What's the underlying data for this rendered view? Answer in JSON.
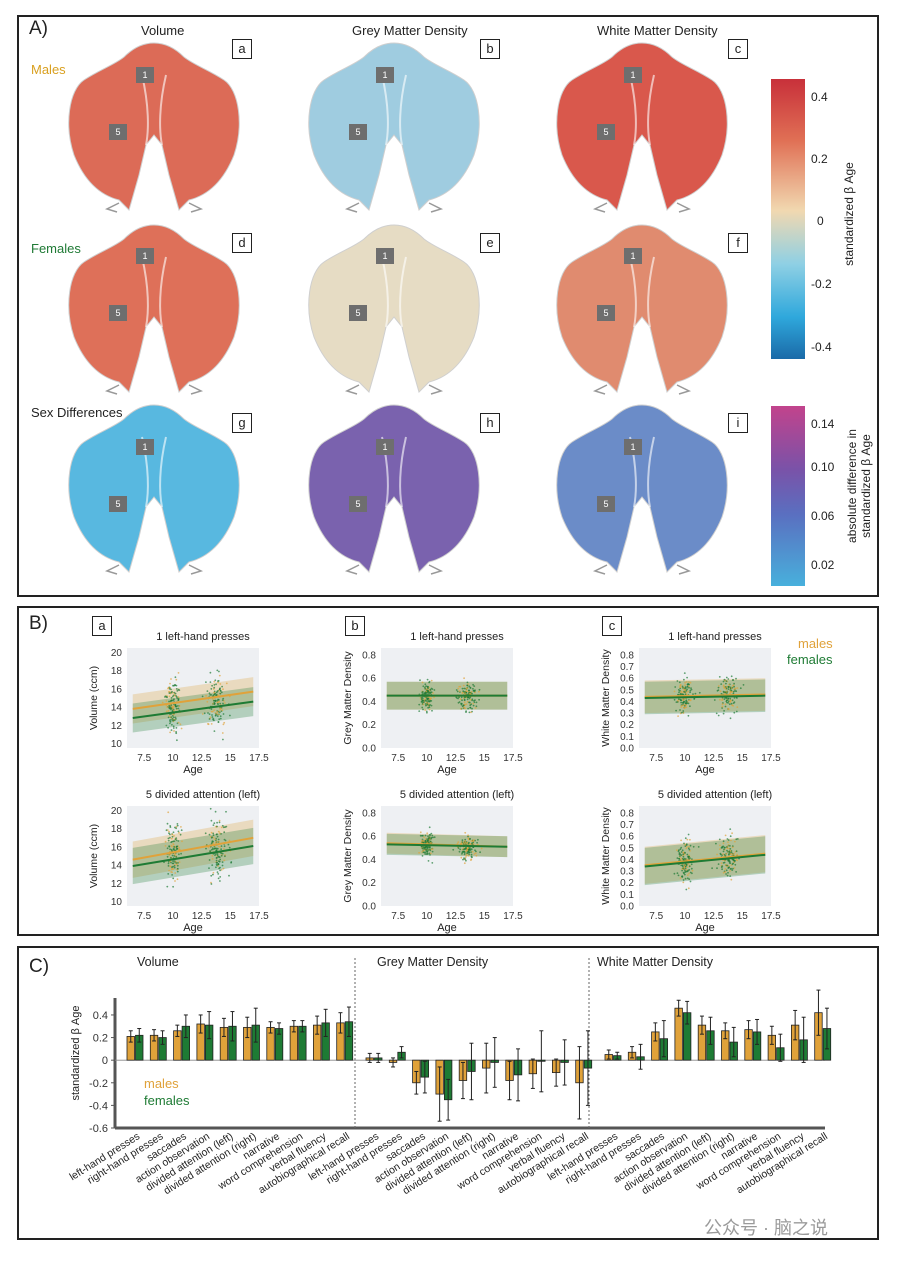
{
  "panelA": {
    "label": "A)",
    "columns": [
      "Volume",
      "Grey Matter Density",
      "White Matter Density"
    ],
    "rows": [
      "Males",
      "Females",
      "Sex Differences"
    ],
    "row_colors": [
      "#d9a020",
      "#1f7a35",
      "#222222"
    ],
    "subpanels": [
      "a",
      "b",
      "c",
      "d",
      "e",
      "f",
      "g",
      "h",
      "i"
    ],
    "regions": [
      "1",
      "5"
    ],
    "colorbar1": {
      "title": "standardized β Age",
      "ticks": [
        "0.4",
        "0.2",
        "0",
        "-0.2",
        "-0.4"
      ]
    },
    "colorbar2": {
      "title_line1": "absolute difference in",
      "title_line2": "standardized β Age",
      "ticks": [
        "0.14",
        "0.10",
        "0.06",
        "0.02"
      ]
    },
    "map_colors": {
      "a": "#dc6b57",
      "b": "#9fcce0",
      "c": "#d9584c",
      "d": "#de7059",
      "e": "#e6dcc4",
      "f": "#e08b6f",
      "g": "#58b8e0",
      "h": "#7a62ae",
      "i": "#6b8cc8"
    }
  },
  "panelB": {
    "label": "B)",
    "legend": {
      "males": "males",
      "females": "females"
    },
    "colors": {
      "males": "#e0a23a",
      "females": "#1e7b34"
    },
    "subpanels": [
      "a",
      "b",
      "c"
    ]
  },
  "panelC": {
    "label": "C)",
    "groups": [
      "Volume",
      "Grey Matter Density",
      "White Matter Density"
    ],
    "legend": {
      "males": "males",
      "females": "females"
    }
  },
  "watermark": "公众号 · 脑之说",
  "chart_data": [
    {
      "type": "scatter",
      "id": "B-a-1",
      "title": "1 left-hand presses",
      "xlabel": "Age",
      "ylabel": "Volume (ccm)",
      "xticks": [
        "7.5",
        "10",
        "12.5",
        "15",
        "17.5"
      ],
      "yticks": [
        "10",
        "12",
        "14",
        "16",
        "18",
        "20"
      ],
      "xlim": [
        6,
        17.5
      ],
      "ylim": [
        9.5,
        20.5
      ],
      "fit": {
        "males": [
          [
            6.5,
            13.8
          ],
          [
            17,
            15.7
          ]
        ],
        "females": [
          [
            6.5,
            12.8
          ],
          [
            17,
            14.6
          ]
        ]
      },
      "band": 1.6,
      "clusters": [
        {
          "x": 10,
          "y": 14,
          "sx": 0.35,
          "sy": 1.4
        },
        {
          "x": 13.8,
          "y": 14.5,
          "sx": 0.45,
          "sy": 1.4
        }
      ]
    },
    {
      "type": "scatter",
      "id": "B-b-1",
      "title": "1 left-hand presses",
      "xlabel": "Age",
      "ylabel": "Grey Matter Density",
      "xticks": [
        "7.5",
        "10",
        "12.5",
        "15",
        "17.5"
      ],
      "yticks": [
        "0.0",
        "0.2",
        "0.4",
        "0.6",
        "0.8"
      ],
      "xlim": [
        6,
        17.5
      ],
      "ylim": [
        0,
        0.86
      ],
      "fit": {
        "males": [
          [
            6.5,
            0.45
          ],
          [
            17,
            0.45
          ]
        ],
        "females": [
          [
            6.5,
            0.45
          ],
          [
            17,
            0.45
          ]
        ]
      },
      "band": 0.12,
      "clusters": [
        {
          "x": 10,
          "y": 0.45,
          "sx": 0.3,
          "sy": 0.06
        },
        {
          "x": 13.5,
          "y": 0.44,
          "sx": 0.4,
          "sy": 0.06
        }
      ]
    },
    {
      "type": "scatter",
      "id": "B-c-1",
      "title": "1 left-hand presses",
      "xlabel": "Age",
      "ylabel": "White Matter Density",
      "xticks": [
        "7.5",
        "10",
        "12.5",
        "15",
        "17.5"
      ],
      "yticks": [
        "0.0",
        "0.1",
        "0.2",
        "0.3",
        "0.4",
        "0.5",
        "0.6",
        "0.7",
        "0.8"
      ],
      "xlim": [
        6,
        17.5
      ],
      "ylim": [
        0,
        0.86
      ],
      "fit": {
        "males": [
          [
            6.5,
            0.44
          ],
          [
            17,
            0.46
          ]
        ],
        "females": [
          [
            6.5,
            0.43
          ],
          [
            17,
            0.45
          ]
        ]
      },
      "band": 0.14,
      "clusters": [
        {
          "x": 10,
          "y": 0.45,
          "sx": 0.35,
          "sy": 0.07
        },
        {
          "x": 13.8,
          "y": 0.46,
          "sx": 0.45,
          "sy": 0.07
        }
      ]
    },
    {
      "type": "scatter",
      "id": "B-a-5",
      "title": "5 divided attention (left)",
      "xlabel": "Age",
      "ylabel": "Volume (ccm)",
      "xticks": [
        "7.5",
        "10",
        "12.5",
        "15",
        "17.5"
      ],
      "yticks": [
        "10",
        "12",
        "14",
        "16",
        "18",
        "20"
      ],
      "xlim": [
        6,
        17.5
      ],
      "ylim": [
        9.5,
        20.5
      ],
      "fit": {
        "males": [
          [
            6.5,
            14.6
          ],
          [
            17,
            17.0
          ]
        ],
        "females": [
          [
            6.5,
            13.9
          ],
          [
            17,
            16.1
          ]
        ]
      },
      "band": 2.0,
      "clusters": [
        {
          "x": 10,
          "y": 15.2,
          "sx": 0.35,
          "sy": 1.6
        },
        {
          "x": 13.8,
          "y": 15.8,
          "sx": 0.45,
          "sy": 1.6
        }
      ]
    },
    {
      "type": "scatter",
      "id": "B-b-5",
      "title": "5 divided attention (left)",
      "xlabel": "Age",
      "ylabel": "Grey Matter Density",
      "xticks": [
        "7.5",
        "10",
        "12.5",
        "15",
        "17.5"
      ],
      "yticks": [
        "0.0",
        "0.2",
        "0.4",
        "0.6",
        "0.8"
      ],
      "xlim": [
        6,
        17.5
      ],
      "ylim": [
        0,
        0.86
      ],
      "fit": {
        "males": [
          [
            6.5,
            0.54
          ],
          [
            17,
            0.51
          ]
        ],
        "females": [
          [
            6.5,
            0.53
          ],
          [
            17,
            0.51
          ]
        ]
      },
      "band": 0.09,
      "clusters": [
        {
          "x": 10,
          "y": 0.53,
          "sx": 0.3,
          "sy": 0.05
        },
        {
          "x": 13.5,
          "y": 0.5,
          "sx": 0.4,
          "sy": 0.05
        }
      ]
    },
    {
      "type": "scatter",
      "id": "B-c-5",
      "title": "5 divided attention (left)",
      "xlabel": "Age",
      "ylabel": "White Matter Density",
      "xticks": [
        "7.5",
        "10",
        "12.5",
        "15",
        "17.5"
      ],
      "yticks": [
        "0.0",
        "0.1",
        "0.2",
        "0.3",
        "0.4",
        "0.5",
        "0.6",
        "0.7",
        "0.8"
      ],
      "xlim": [
        6,
        17.5
      ],
      "ylim": [
        0,
        0.86
      ],
      "fit": {
        "males": [
          [
            6.5,
            0.35
          ],
          [
            17,
            0.45
          ]
        ],
        "females": [
          [
            6.5,
            0.34
          ],
          [
            17,
            0.44
          ]
        ]
      },
      "band": 0.16,
      "clusters": [
        {
          "x": 10,
          "y": 0.38,
          "sx": 0.35,
          "sy": 0.08
        },
        {
          "x": 13.8,
          "y": 0.42,
          "sx": 0.45,
          "sy": 0.08
        }
      ]
    },
    {
      "type": "bar",
      "id": "C",
      "ylabel": "standardized β Age",
      "yticks": [
        "-0.6",
        "-0.4",
        "-0.2",
        "0",
        "0.2",
        "0.4"
      ],
      "ylim": [
        -0.6,
        0.55
      ],
      "categories": [
        "left-hand presses",
        "right-hand presses",
        "saccades",
        "action observation",
        "divided attention (left)",
        "divided attention (right)",
        "narrative",
        "word comprehension",
        "verbal fluency",
        "autobiographical recall",
        "left-hand presses",
        "right-hand presses",
        "saccades",
        "action observation",
        "divided attention (left)",
        "divided attention (right)",
        "narrative",
        "word comprehension",
        "verbal fluency",
        "autobiographical recall",
        "left-hand presses",
        "right-hand presses",
        "saccades",
        "action observation",
        "divided attention (left)",
        "divided attention (right)",
        "narrative",
        "word comprehension",
        "verbal fluency",
        "autobiographical recall"
      ],
      "series": [
        {
          "name": "males",
          "color": "#e0a23a",
          "values": [
            0.21,
            0.22,
            0.26,
            0.32,
            0.29,
            0.29,
            0.29,
            0.3,
            0.31,
            0.33,
            0.02,
            -0.02,
            -0.2,
            -0.3,
            -0.18,
            -0.07,
            -0.18,
            -0.12,
            -0.11,
            -0.2,
            0.05,
            0.07,
            0.25,
            0.46,
            0.31,
            0.26,
            0.27,
            0.22,
            0.31,
            0.42
          ],
          "err": [
            0.05,
            0.05,
            0.05,
            0.08,
            0.08,
            0.09,
            0.05,
            0.05,
            0.08,
            0.09,
            0.04,
            0.04,
            0.1,
            0.24,
            0.16,
            0.22,
            0.17,
            0.13,
            0.12,
            0.32,
            0.04,
            0.05,
            0.08,
            0.07,
            0.08,
            0.07,
            0.08,
            0.08,
            0.13,
            0.2
          ]
        },
        {
          "name": "females",
          "color": "#1e7b34",
          "values": [
            0.22,
            0.2,
            0.3,
            0.31,
            0.3,
            0.31,
            0.28,
            0.3,
            0.33,
            0.34,
            0.02,
            0.07,
            -0.15,
            -0.35,
            -0.1,
            -0.02,
            -0.13,
            -0.01,
            -0.02,
            -0.07,
            0.04,
            0.03,
            0.19,
            0.42,
            0.26,
            0.16,
            0.25,
            0.11,
            0.18,
            0.28
          ],
          "err": [
            0.06,
            0.06,
            0.1,
            0.12,
            0.13,
            0.15,
            0.05,
            0.05,
            0.12,
            0.13,
            0.04,
            0.05,
            0.14,
            0.18,
            0.25,
            0.22,
            0.23,
            0.27,
            0.2,
            0.33,
            0.03,
            0.11,
            0.16,
            0.1,
            0.12,
            0.13,
            0.11,
            0.12,
            0.2,
            0.18
          ]
        }
      ]
    }
  ]
}
